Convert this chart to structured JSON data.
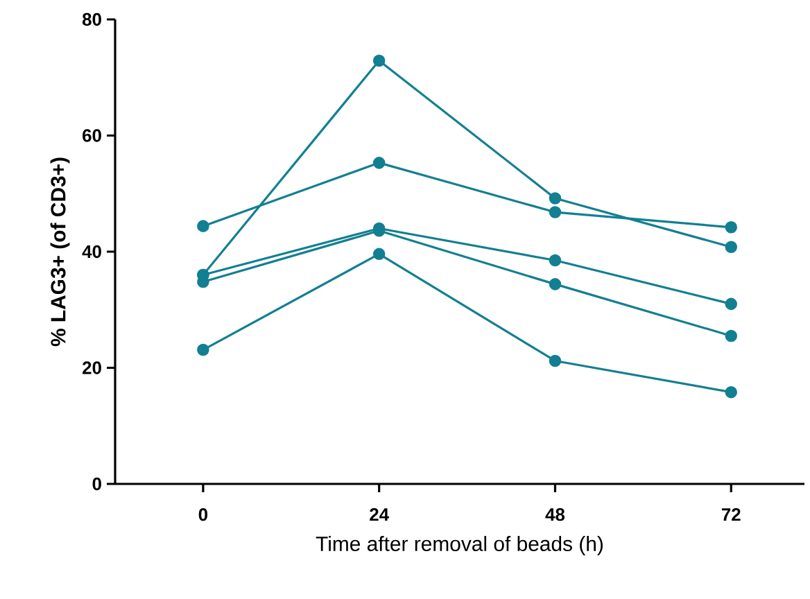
{
  "chart_data": {
    "type": "line",
    "xlabel": "Time after removal of beads (h)",
    "ylabel": "% LAG3+ (of CD3+)",
    "x": [
      0,
      24,
      48,
      72
    ],
    "series": [
      {
        "color": "#137f92",
        "values": [
          36.0,
          72.9,
          49.2,
          40.8
        ]
      },
      {
        "color": "#137f92",
        "values": [
          44.4,
          55.3,
          46.8,
          44.2
        ]
      },
      {
        "color": "#137f92",
        "values": [
          36.0,
          44.0,
          38.5,
          31.0
        ]
      },
      {
        "color": "#137f92",
        "values": [
          34.8,
          43.6,
          34.4,
          25.5
        ]
      },
      {
        "color": "#137f92",
        "values": [
          23.1,
          39.6,
          21.2,
          15.8
        ]
      }
    ],
    "xlim": [
      -12,
      82
    ],
    "ylim": [
      0,
      80
    ],
    "xticks": [
      0,
      24,
      48,
      72
    ],
    "yticks": [
      0,
      20,
      40,
      60,
      80
    ],
    "grid": false,
    "marker": "circle",
    "line_style": "solid"
  }
}
